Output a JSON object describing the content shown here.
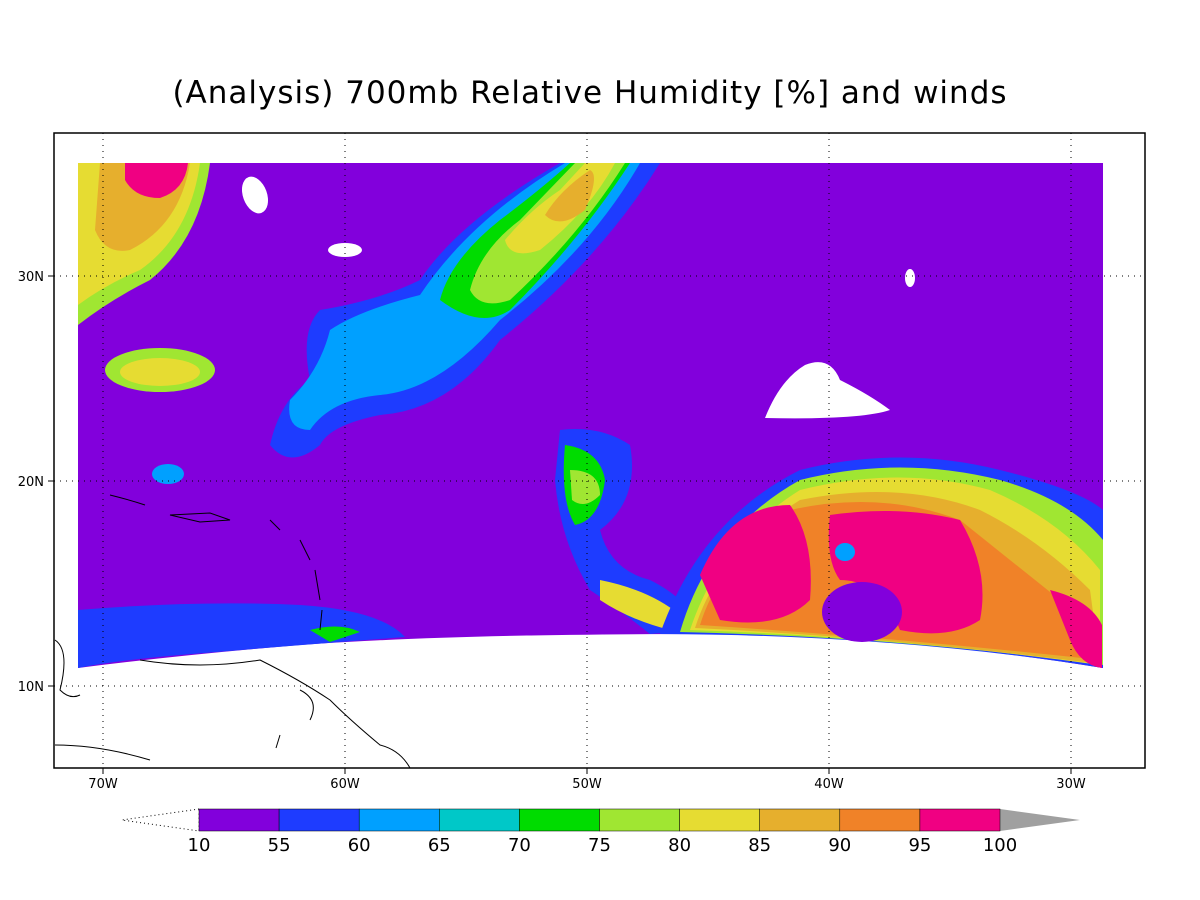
{
  "title": "(Analysis) 700mb Relative Humidity [%] and winds",
  "map": {
    "lon_ticks": [
      {
        "value": -70,
        "label": "70W"
      },
      {
        "value": -60,
        "label": "60W"
      },
      {
        "value": -50,
        "label": "50W"
      },
      {
        "value": -40,
        "label": "40W"
      },
      {
        "value": -30,
        "label": "30W"
      }
    ],
    "lat_ticks": [
      {
        "value": 10,
        "label": "10N"
      },
      {
        "value": 20,
        "label": "20N"
      },
      {
        "value": 30,
        "label": "30N"
      }
    ],
    "grid": true
  },
  "colorbar": {
    "levels": [
      10,
      55,
      60,
      65,
      70,
      75,
      80,
      85,
      90,
      95,
      100
    ],
    "colors": [
      "#8200dc",
      "#1e3cff",
      "#00a0ff",
      "#00c8c8",
      "#00dc00",
      "#a0e632",
      "#e6dc32",
      "#e6af2d",
      "#f08228",
      "#f00082"
    ],
    "below_color": "#ffffff",
    "above_color": "#a0a0a0"
  }
}
